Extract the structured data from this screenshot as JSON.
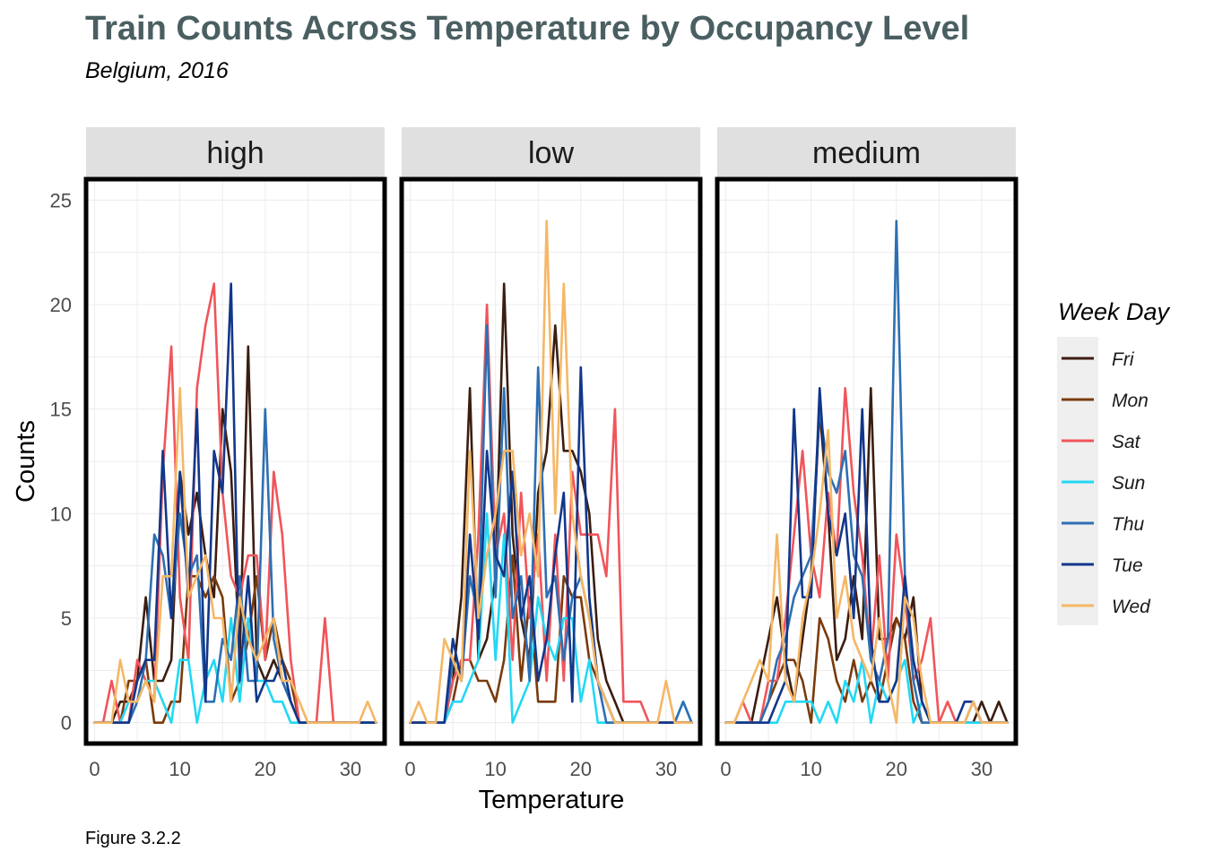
{
  "chart_data": {
    "type": "line",
    "title": "Train Counts Across Temperature by Occupancy Level",
    "subtitle": "Belgium, 2016",
    "xlabel": "Temperature",
    "ylabel": "Counts",
    "caption": "Figure 3.2.2",
    "xlim": [
      -1,
      34
    ],
    "ylim": [
      -1,
      26
    ],
    "x_ticks": [
      0,
      10,
      20,
      30
    ],
    "y_ticks": [
      0,
      5,
      10,
      15,
      20,
      25
    ],
    "grid": true,
    "legend_title": "Week Day",
    "legend_position": "right",
    "series_names": [
      "Fri",
      "Mon",
      "Sat",
      "Sun",
      "Thu",
      "Tue",
      "Wed"
    ],
    "colors": {
      "Fri": "#3b1d10",
      "Mon": "#7a3a0c",
      "Sat": "#f0555a",
      "Sun": "#22d8f5",
      "Thu": "#2e6fb2",
      "Tue": "#12378a",
      "Wed": "#f5b766"
    },
    "x": [
      0,
      1,
      2,
      3,
      4,
      5,
      6,
      7,
      8,
      9,
      10,
      11,
      12,
      13,
      14,
      15,
      16,
      17,
      18,
      19,
      20,
      21,
      22,
      23,
      24,
      25,
      26,
      27,
      28,
      29,
      30,
      31,
      32,
      33
    ],
    "panels": [
      {
        "label": "high",
        "series": [
          {
            "name": "Fri",
            "values": [
              0,
              0,
              0,
              1,
              1,
              2,
              6,
              2,
              2,
              3,
              12,
              9,
              11,
              8,
              6,
              15,
              12,
              3,
              18,
              3,
              2,
              3,
              2,
              1,
              0,
              0,
              0,
              0,
              0,
              0,
              0,
              0,
              0,
              0
            ]
          },
          {
            "name": "Mon",
            "values": [
              0,
              0,
              0,
              0,
              2,
              2,
              3,
              0,
              0,
              1,
              1,
              7,
              7,
              6,
              7,
              6,
              1,
              2,
              4,
              7,
              3,
              5,
              3,
              2,
              0,
              0,
              0,
              0,
              0,
              0,
              0,
              0,
              0,
              0
            ]
          },
          {
            "name": "Sat",
            "values": [
              0,
              0,
              2,
              0,
              0,
              3,
              2,
              1,
              12,
              18,
              6,
              3,
              16,
              19,
              21,
              11,
              7,
              6,
              8,
              8,
              3,
              12,
              9,
              3,
              0,
              0,
              0,
              5,
              0,
              0,
              0,
              0,
              0,
              0
            ]
          },
          {
            "name": "Sun",
            "values": [
              0,
              0,
              0,
              0,
              1,
              1,
              2,
              2,
              1,
              0,
              3,
              3,
              0,
              2,
              3,
              1,
              5,
              1,
              5,
              2,
              2,
              1,
              1,
              0,
              0,
              0,
              0,
              0,
              0,
              0,
              0,
              0,
              0,
              0
            ]
          },
          {
            "name": "Thu",
            "values": [
              0,
              0,
              0,
              0,
              0,
              1,
              3,
              9,
              8,
              5,
              10,
              7,
              8,
              1,
              1,
              4,
              3,
              7,
              2,
              2,
              15,
              4,
              2,
              1,
              0,
              0,
              0,
              0,
              0,
              0,
              0,
              0,
              0,
              0
            ]
          },
          {
            "name": "Tue",
            "values": [
              0,
              0,
              0,
              0,
              0,
              2,
              3,
              3,
              13,
              5,
              12,
              6,
              15,
              1,
              13,
              11,
              21,
              2,
              7,
              1,
              2,
              2,
              3,
              1,
              0,
              0,
              0,
              0,
              0,
              0,
              0,
              0,
              0,
              0
            ]
          },
          {
            "name": "Wed",
            "values": [
              0,
              0,
              0,
              3,
              1,
              1,
              2,
              1,
              7,
              7,
              16,
              6,
              7,
              8,
              5,
              5,
              1,
              6,
              4,
              3,
              4,
              5,
              2,
              2,
              1,
              0,
              0,
              0,
              0,
              0,
              0,
              0,
              1,
              0
            ]
          }
        ]
      },
      {
        "label": "low",
        "series": [
          {
            "name": "Fri",
            "values": [
              0,
              0,
              0,
              0,
              0,
              2,
              6,
              16,
              3,
              4,
              7,
              21,
              9,
              5,
              3,
              11,
              13,
              19,
              13,
              13,
              12,
              10,
              4,
              2,
              1,
              0,
              0,
              0,
              0,
              0,
              0,
              0,
              0,
              0
            ]
          },
          {
            "name": "Mon",
            "values": [
              0,
              0,
              0,
              0,
              0,
              1,
              3,
              3,
              2,
              2,
              1,
              3,
              8,
              2,
              6,
              1,
              1,
              1,
              7,
              6,
              6,
              3,
              2,
              1,
              0,
              0,
              0,
              0,
              0,
              0,
              0,
              0,
              0,
              0
            ]
          },
          {
            "name": "Sat",
            "values": [
              0,
              0,
              0,
              0,
              0,
              2,
              3,
              3,
              9,
              20,
              8,
              10,
              3,
              11,
              5,
              9,
              2,
              9,
              2,
              12,
              9,
              9,
              9,
              7,
              15,
              1,
              1,
              1,
              0,
              0,
              0,
              0,
              0,
              0
            ]
          },
          {
            "name": "Sun",
            "values": [
              0,
              0,
              0,
              0,
              0,
              1,
              1,
              2,
              3,
              10,
              3,
              9,
              0,
              1,
              2,
              6,
              4,
              3,
              5,
              5,
              1,
              3,
              0,
              0,
              0,
              0,
              0,
              0,
              0,
              0,
              0,
              0,
              1,
              0
            ]
          },
          {
            "name": "Thu",
            "values": [
              0,
              0,
              0,
              0,
              0,
              3,
              2,
              7,
              5,
              19,
              6,
              16,
              5,
              7,
              2,
              17,
              6,
              7,
              3,
              6,
              7,
              5,
              2,
              0,
              0,
              0,
              0,
              0,
              0,
              0,
              0,
              0,
              1,
              0
            ]
          },
          {
            "name": "Tue",
            "values": [
              0,
              0,
              0,
              0,
              0,
              4,
              2,
              9,
              4,
              13,
              8,
              7,
              12,
              5,
              7,
              2,
              4,
              8,
              11,
              1,
              17,
              6,
              2,
              1,
              0,
              0,
              0,
              0,
              0,
              0,
              0,
              0,
              0,
              0
            ]
          },
          {
            "name": "Wed",
            "values": [
              0,
              1,
              0,
              0,
              4,
              3,
              2,
              13,
              5,
              8,
              10,
              13,
              13,
              8,
              10,
              7,
              24,
              10,
              21,
              10,
              7,
              5,
              2,
              1,
              0,
              0,
              0,
              0,
              0,
              0,
              2,
              0,
              0,
              0
            ]
          }
        ]
      },
      {
        "label": "medium",
        "series": [
          {
            "name": "Fri",
            "values": [
              0,
              0,
              0,
              0,
              2,
              4,
              6,
              3,
              1,
              4,
              7,
              15,
              10,
              3,
              4,
              7,
              4,
              16,
              4,
              4,
              5,
              4,
              6,
              1,
              0,
              0,
              0,
              0,
              0,
              0,
              1,
              0,
              1,
              0
            ]
          },
          {
            "name": "Mon",
            "values": [
              0,
              0,
              0,
              0,
              0,
              1,
              2,
              3,
              3,
              2,
              0,
              5,
              4,
              2,
              1,
              3,
              1,
              2,
              1,
              3,
              5,
              4,
              1,
              0,
              0,
              0,
              0,
              0,
              0,
              0,
              0,
              0,
              0,
              0
            ]
          },
          {
            "name": "Sat",
            "values": [
              0,
              0,
              1,
              0,
              0,
              2,
              2,
              5,
              9,
              13,
              8,
              6,
              11,
              8,
              16,
              11,
              8,
              3,
              8,
              2,
              9,
              6,
              2,
              3,
              5,
              0,
              1,
              0,
              0,
              0,
              0,
              0,
              0,
              0
            ]
          },
          {
            "name": "Sun",
            "values": [
              0,
              0,
              0,
              0,
              0,
              0,
              0,
              1,
              1,
              1,
              1,
              0,
              1,
              0,
              2,
              1,
              3,
              0,
              2,
              1,
              2,
              3,
              0,
              1,
              0,
              0,
              0,
              0,
              0,
              0,
              0,
              0,
              0,
              0
            ]
          },
          {
            "name": "Thu",
            "values": [
              0,
              0,
              0,
              0,
              0,
              1,
              3,
              4,
              6,
              7,
              8,
              15,
              12,
              11,
              13,
              8,
              7,
              3,
              2,
              4,
              24,
              7,
              2,
              0,
              0,
              0,
              0,
              0,
              0,
              1,
              0,
              0,
              0,
              0
            ]
          },
          {
            "name": "Tue",
            "values": [
              0,
              0,
              0,
              0,
              0,
              0,
              1,
              2,
              15,
              6,
              6,
              16,
              10,
              8,
              10,
              5,
              15,
              4,
              1,
              1,
              2,
              7,
              3,
              1,
              0,
              0,
              0,
              0,
              1,
              1,
              0,
              0,
              0,
              0
            ]
          },
          {
            "name": "Wed",
            "values": [
              0,
              0,
              1,
              2,
              3,
              2,
              9,
              2,
              1,
              5,
              7,
              10,
              14,
              5,
              7,
              4,
              3,
              2,
              5,
              2,
              0,
              6,
              5,
              2,
              0,
              0,
              0,
              0,
              0,
              1,
              0,
              0,
              0,
              0
            ]
          }
        ]
      }
    ]
  }
}
